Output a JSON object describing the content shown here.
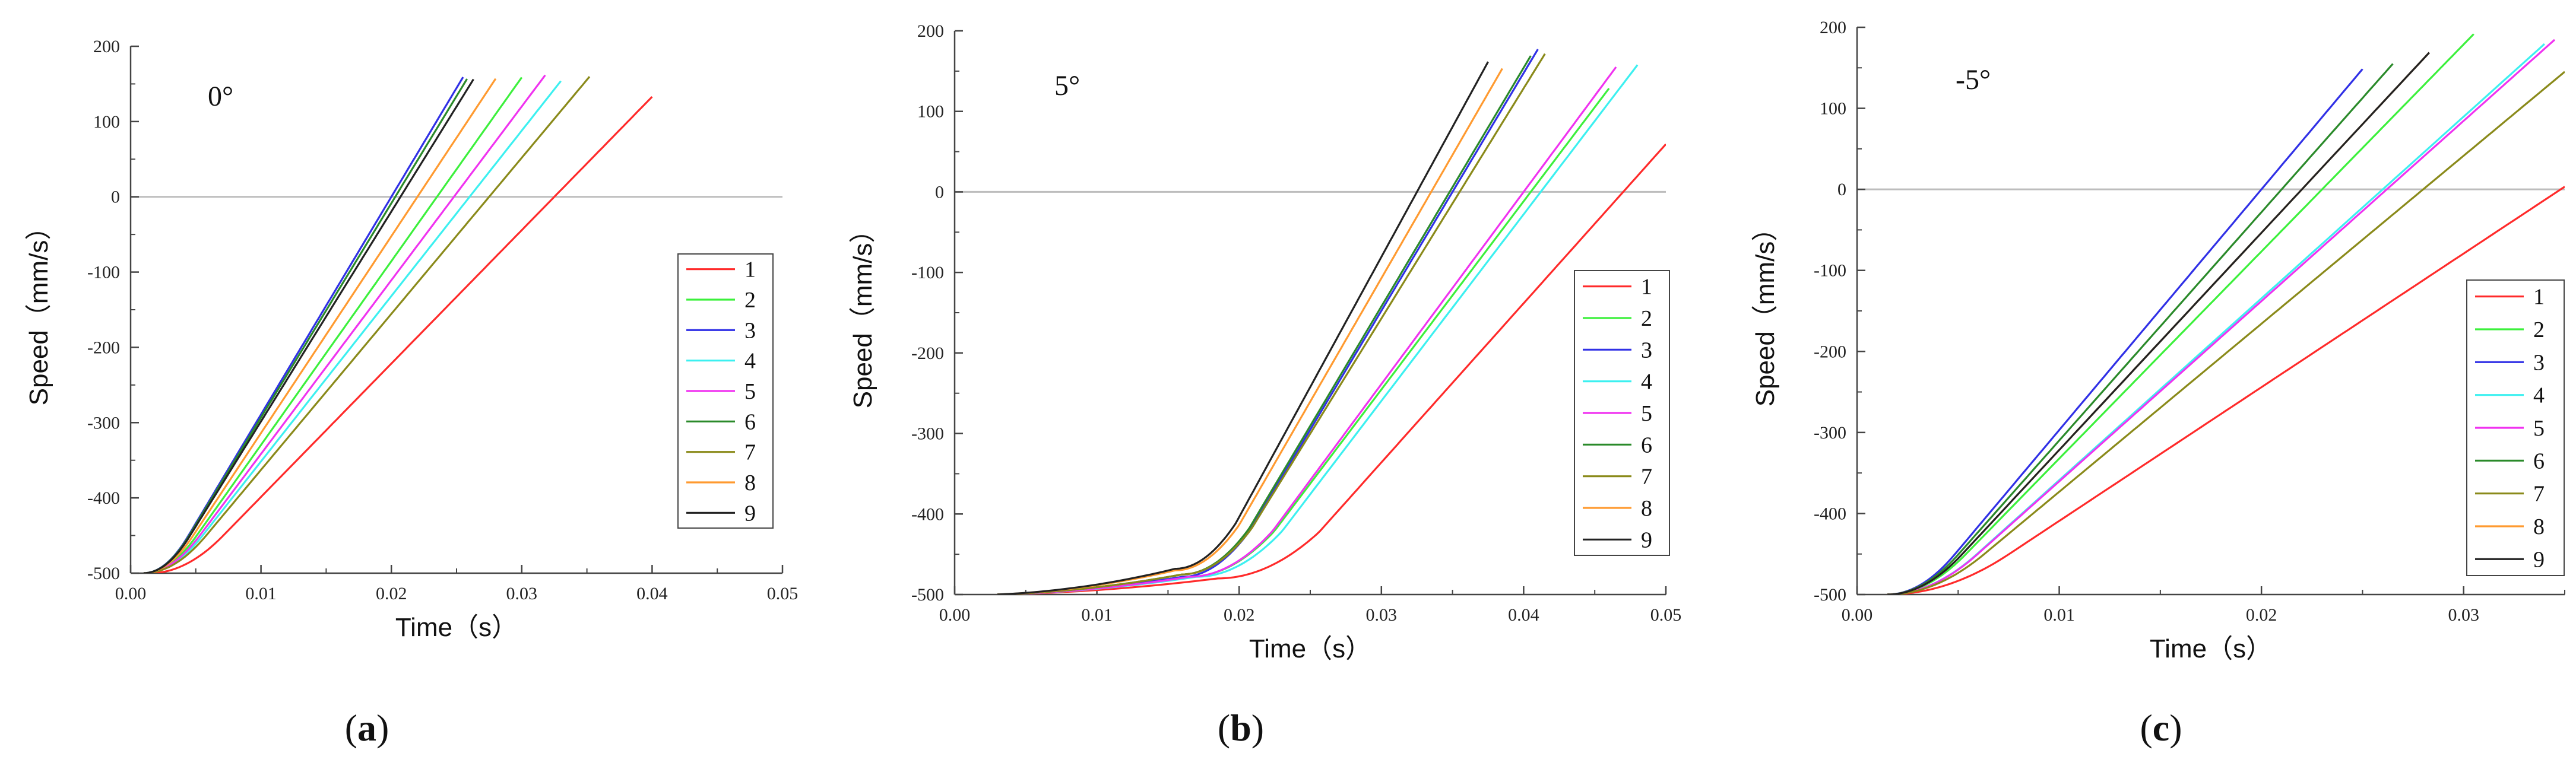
{
  "colors": {
    "1": "#ff2a2a",
    "2": "#3cf03c",
    "3": "#3030e6",
    "4": "#3cf0f0",
    "5": "#f032f0",
    "6": "#2a8a2a",
    "7": "#8a8a1a",
    "8": "#ff9a30",
    "9": "#222222"
  },
  "chart_data": [
    {
      "type": "line",
      "panel_caption": {
        "open": "(",
        "letter": "a",
        "close": ")"
      },
      "annotation": "0°",
      "xlabel": "Time（s）",
      "ylabel": "Speed（mm/s）",
      "xlim": [
        0,
        0.05
      ],
      "ylim": [
        -500,
        200
      ],
      "xticks": [
        "0.00",
        "0.01",
        "0.02",
        "0.03",
        "0.04",
        "0.05"
      ],
      "yticks": [
        "200",
        "100",
        "0",
        "-100",
        "-200",
        "-300",
        "-400",
        "-500"
      ],
      "legend": [
        "1",
        "2",
        "3",
        "4",
        "5",
        "6",
        "7",
        "8",
        "9"
      ],
      "series": [
        {
          "name": "1",
          "start": 0.0015,
          "x0": 0.0325,
          "end": 0.04
        },
        {
          "name": "2",
          "start": 0.001,
          "x0": 0.0235,
          "end": 0.03
        },
        {
          "name": "3",
          "start": 0.001,
          "x0": 0.02,
          "end": 0.0255
        },
        {
          "name": "4",
          "start": 0.001,
          "x0": 0.026,
          "end": 0.033
        },
        {
          "name": "5",
          "start": 0.001,
          "x0": 0.0248,
          "end": 0.0318
        },
        {
          "name": "6",
          "start": 0.001,
          "x0": 0.0203,
          "end": 0.0258
        },
        {
          "name": "7",
          "start": 0.001,
          "x0": 0.0275,
          "end": 0.0352
        },
        {
          "name": "8",
          "start": 0.001,
          "x0": 0.022,
          "end": 0.028
        },
        {
          "name": "9",
          "start": 0.001,
          "x0": 0.0207,
          "end": 0.0263
        }
      ]
    },
    {
      "type": "line",
      "panel_caption": {
        "open": "(",
        "letter": "b",
        "close": ")"
      },
      "annotation": "5°",
      "xlabel": "Time（s）",
      "ylabel": "Speed（mm/s）",
      "xlim": [
        0,
        0.05
      ],
      "ylim": [
        -500,
        200
      ],
      "xticks": [
        "0.00",
        "0.01",
        "0.02",
        "0.03",
        "0.04",
        "0.05"
      ],
      "yticks": [
        "200",
        "100",
        "0",
        "-100",
        "-200",
        "-300",
        "-400",
        "-500"
      ],
      "legend": [
        "1",
        "2",
        "3",
        "4",
        "5",
        "6",
        "7",
        "8",
        "9"
      ],
      "series": [
        {
          "name": "1",
          "start": 0.003,
          "knee": 0.0185,
          "kneeV": -480,
          "x0": 0.047,
          "end": 0.05
        },
        {
          "name": "2",
          "start": 0.003,
          "knee": 0.0165,
          "kneeV": -478,
          "x0": 0.0405,
          "end": 0.046
        },
        {
          "name": "3",
          "start": 0.003,
          "knee": 0.016,
          "kneeV": -478,
          "x0": 0.035,
          "end": 0.041
        },
        {
          "name": "4",
          "start": 0.003,
          "knee": 0.017,
          "kneeV": -478,
          "x0": 0.0412,
          "end": 0.048
        },
        {
          "name": "5",
          "start": 0.003,
          "knee": 0.0165,
          "kneeV": -478,
          "x0": 0.04,
          "end": 0.0465
        },
        {
          "name": "6",
          "start": 0.003,
          "knee": 0.016,
          "kneeV": -475,
          "x0": 0.0348,
          "end": 0.0405
        },
        {
          "name": "7",
          "start": 0.003,
          "knee": 0.016,
          "kneeV": -475,
          "x0": 0.0355,
          "end": 0.0415
        },
        {
          "name": "8",
          "start": 0.003,
          "knee": 0.0155,
          "kneeV": -470,
          "x0": 0.0335,
          "end": 0.0385
        },
        {
          "name": "9",
          "start": 0.003,
          "knee": 0.0155,
          "kneeV": -468,
          "x0": 0.0325,
          "end": 0.0375
        }
      ]
    },
    {
      "type": "line",
      "panel_caption": {
        "open": "(",
        "letter": "c",
        "close": ")"
      },
      "annotation": "-5°",
      "xlabel": "Time（s）",
      "ylabel": "Speed（mm/s）",
      "xlim": [
        0,
        0.035
      ],
      "ylim": [
        -500,
        200
      ],
      "xticks": [
        "0.00",
        "0.01",
        "0.02",
        "0.03"
      ],
      "yticks": [
        "200",
        "100",
        "0",
        "-100",
        "-200",
        "-300",
        "-400",
        "-500"
      ],
      "legend": [
        "1",
        "2",
        "3",
        "4",
        "5",
        "6",
        "7",
        "8",
        "9"
      ],
      "series": [
        {
          "name": "1",
          "start": 0.0015,
          "x0": 0.0348,
          "end": 0.035
        },
        {
          "name": "2",
          "start": 0.0015,
          "x0": 0.023,
          "end": 0.0305
        },
        {
          "name": "3",
          "start": 0.0015,
          "x0": 0.02,
          "end": 0.025
        },
        {
          "name": "4",
          "start": 0.0015,
          "x0": 0.026,
          "end": 0.034
        },
        {
          "name": "5",
          "start": 0.0015,
          "x0": 0.0262,
          "end": 0.0345
        },
        {
          "name": "6",
          "start": 0.0015,
          "x0": 0.021,
          "end": 0.0265
        },
        {
          "name": "7",
          "start": 0.0015,
          "x0": 0.028,
          "end": 0.035
        },
        {
          "name": "8",
          "start": 0.0015,
          "x0": 0.022,
          "end": 0.0283
        },
        {
          "name": "9",
          "start": 0.0015,
          "x0": 0.022,
          "end": 0.0283
        }
      ]
    }
  ]
}
